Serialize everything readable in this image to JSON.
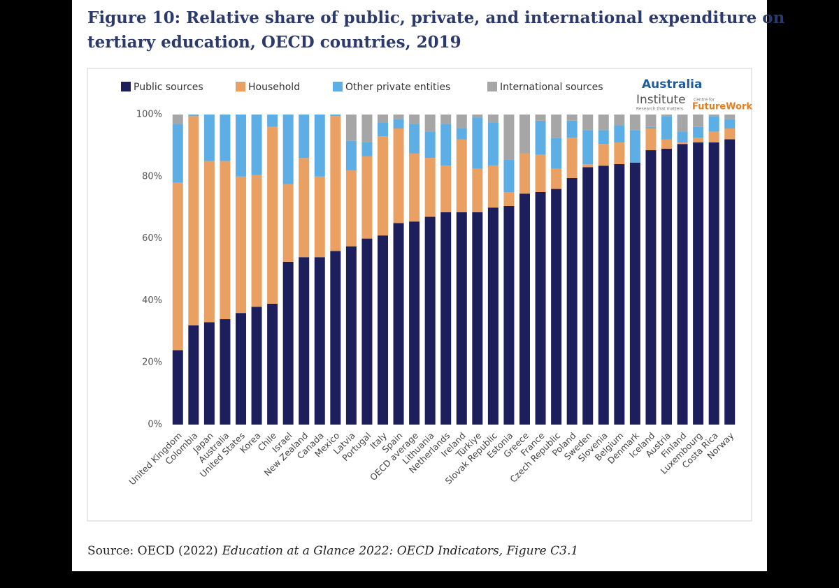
{
  "chart_data": {
    "type": "stacked_bar",
    "title_lines": [
      "Figure 10: Relative share of public, private, and international expenditure on",
      "tertiary education, OECD countries, 2019"
    ],
    "source": "Source: OECD (2022)",
    "source_title": "Education at a Glance 2022: OECD Indicators, Figure C3.1",
    "logo": [
      "Australia",
      "Institute",
      "Research that matters",
      "Centre for",
      "FutureWork"
    ],
    "categories": [
      "United Kingdom",
      "Colombia",
      "Japan",
      "Australia",
      "United States",
      "Korea",
      "Chile",
      "Israel",
      "New Zealand",
      "Canada",
      "Mexico",
      "Latvia",
      "Portugal",
      "Italy",
      "Spain",
      "OECD average",
      "Lithuania",
      "Netherlands",
      "Ireland",
      "Türkiye",
      "Slovak Republic",
      "Estonia",
      "Greece",
      "France",
      "Czech Republic",
      "Poland",
      "Sweden",
      "Slovenia",
      "Belgium",
      "Denmark",
      "Iceland",
      "Austria",
      "Finland",
      "Luxembourg",
      "Costa Rica",
      "Norway"
    ],
    "series": [
      {
        "name": "Public sources",
        "color": "#1c1f5c",
        "values": [
          24,
          32,
          33,
          34,
          36,
          38,
          39,
          52.5,
          54,
          54,
          56,
          57.5,
          60,
          61,
          65,
          65.5,
          67,
          68.5,
          68.5,
          68.5,
          70,
          70.5,
          74.5,
          75,
          76,
          79.5,
          83,
          83.5,
          84,
          84.5,
          88.5,
          89,
          90.5,
          91,
          91,
          92
        ]
      },
      {
        "name": "Household",
        "color": "#eaa062",
        "values": [
          54,
          67.5,
          52,
          51,
          44,
          42.5,
          57,
          25,
          32,
          26,
          43.5,
          24.5,
          26.5,
          32,
          30.5,
          22,
          19,
          15,
          23.5,
          14,
          13.5,
          4.5,
          13,
          12,
          6.5,
          13,
          1,
          7,
          7,
          0,
          7,
          3,
          0.5,
          1.5,
          3.5,
          3.5
        ]
      },
      {
        "name": "Other private entities",
        "color": "#5caee5",
        "values": [
          19,
          0.5,
          15,
          15,
          20,
          19.5,
          4,
          22.5,
          14,
          20,
          0.5,
          9.5,
          4.5,
          4.5,
          3,
          9.5,
          8.5,
          13.5,
          3.5,
          16.5,
          14,
          10.5,
          0,
          11,
          10,
          5.5,
          11,
          4.5,
          5.5,
          10.5,
          0.5,
          7.5,
          3.5,
          3.5,
          5,
          3
        ]
      },
      {
        "name": "International sources",
        "color": "#a6a6a6",
        "values": [
          3,
          0,
          0,
          0,
          0,
          0,
          0,
          0,
          0,
          0,
          0,
          8.5,
          9,
          2.5,
          1.5,
          3,
          5.5,
          3,
          4.5,
          1,
          2.5,
          14.5,
          12.5,
          2,
          7.5,
          2,
          5,
          5,
          3.5,
          5,
          4,
          0.5,
          5.5,
          4,
          0.5,
          1.5
        ]
      }
    ],
    "ylim": [
      0,
      100
    ],
    "yticks": [
      {
        "value": 0,
        "label": "0%"
      },
      {
        "value": 20,
        "label": "20%"
      },
      {
        "value": 40,
        "label": "40%"
      },
      {
        "value": 60,
        "label": "60%"
      },
      {
        "value": 80,
        "label": "80%"
      },
      {
        "value": 100,
        "label": "100%"
      }
    ]
  }
}
